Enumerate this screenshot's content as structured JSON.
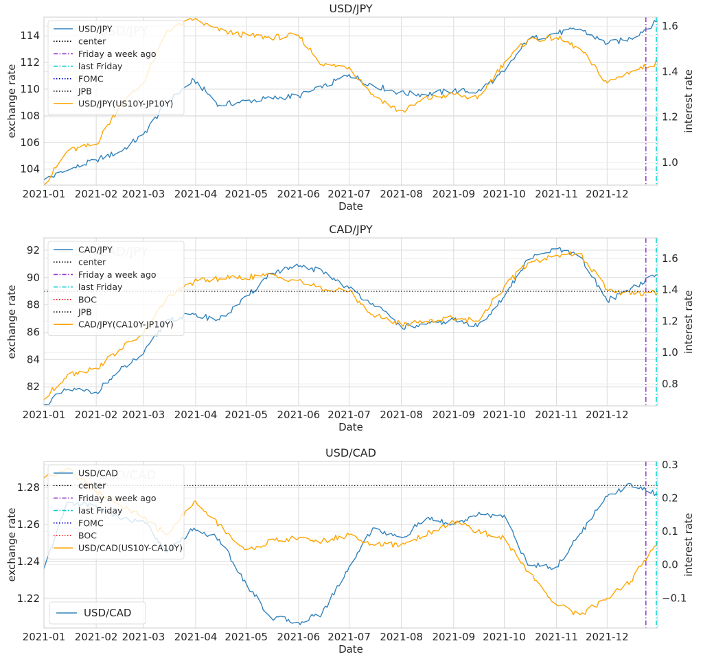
{
  "colors": {
    "primary": "#3182bd",
    "secondary": "#ffa500",
    "center": "#000000",
    "week_ago": "#9932cc",
    "last_friday": "#00ced1",
    "fomc": "#0000cd",
    "boc": "#ff0000",
    "jpb": "#000000"
  },
  "chart_data": [
    {
      "type": "line",
      "title": "USD/JPY",
      "xlabel": "Date",
      "ylabel": "exchange rate",
      "ylabel2": "interest rate",
      "x_ticks": [
        "2021-01",
        "2021-02",
        "2021-03",
        "2021-04",
        "2021-05",
        "2021-06",
        "2021-07",
        "2021-08",
        "2021-09",
        "2021-10",
        "2021-11",
        "2021-12"
      ],
      "x_range": [
        "2021-01-01",
        "2021-12-31"
      ],
      "ylim": [
        102.8,
        115.4
      ],
      "y_ticks": [
        "104",
        "106",
        "108",
        "110",
        "112",
        "114"
      ],
      "ylim2": [
        0.9,
        1.64
      ],
      "y2_ticks": [
        "1.0",
        "1.2",
        "1.4",
        "1.6"
      ],
      "grid": true,
      "legend_position": "top-left",
      "legend": [
        "USD/JPY",
        "center",
        "Friday a week ago",
        "last Friday",
        "FOMC",
        "JPB",
        "USD/JPY(US10Y-JP10Y)"
      ],
      "watermark": "USD/JPY",
      "vlines": {
        "friday_week_ago": "2021-12-24",
        "last_friday": "2021-12-31"
      },
      "series": [
        {
          "name": "USD/JPY",
          "axis": "left",
          "color_key": "primary",
          "x": [
            "2021-01-01",
            "2021-01-15",
            "2021-02-01",
            "2021-02-15",
            "2021-03-01",
            "2021-03-15",
            "2021-03-31",
            "2021-04-15",
            "2021-05-01",
            "2021-05-15",
            "2021-06-01",
            "2021-06-15",
            "2021-07-01",
            "2021-07-15",
            "2021-08-01",
            "2021-08-15",
            "2021-09-01",
            "2021-09-15",
            "2021-10-01",
            "2021-10-15",
            "2021-11-01",
            "2021-11-15",
            "2021-12-01",
            "2021-12-15",
            "2021-12-31"
          ],
          "y": [
            103.2,
            103.9,
            104.7,
            105.3,
            106.6,
            109.0,
            110.7,
            108.8,
            109.1,
            109.3,
            109.5,
            110.1,
            111.1,
            110.3,
            109.7,
            109.6,
            109.9,
            109.8,
            111.3,
            113.7,
            114.2,
            114.5,
            113.4,
            113.8,
            115.1
          ]
        },
        {
          "name": "USD/JPY(US10Y-JP10Y)",
          "axis": "right",
          "color_key": "secondary",
          "x": [
            "2021-01-01",
            "2021-01-15",
            "2021-02-01",
            "2021-02-15",
            "2021-03-01",
            "2021-03-15",
            "2021-03-31",
            "2021-04-15",
            "2021-05-01",
            "2021-05-15",
            "2021-06-01",
            "2021-06-15",
            "2021-07-01",
            "2021-07-15",
            "2021-08-01",
            "2021-08-15",
            "2021-09-01",
            "2021-09-15",
            "2021-10-01",
            "2021-10-15",
            "2021-11-01",
            "2021-11-15",
            "2021-12-01",
            "2021-12-15",
            "2021-12-31"
          ],
          "y": [
            0.9,
            1.05,
            1.08,
            1.25,
            1.35,
            1.58,
            1.63,
            1.58,
            1.56,
            1.55,
            1.56,
            1.43,
            1.42,
            1.3,
            1.22,
            1.28,
            1.3,
            1.28,
            1.44,
            1.54,
            1.55,
            1.5,
            1.35,
            1.4,
            1.44
          ]
        }
      ]
    },
    {
      "type": "line",
      "title": "CAD/JPY",
      "xlabel": "Date",
      "ylabel": "exchange rate",
      "ylabel2": "interest rate",
      "x_ticks": [
        "2021-01",
        "2021-02",
        "2021-03",
        "2021-04",
        "2021-05",
        "2021-06",
        "2021-07",
        "2021-08",
        "2021-09",
        "2021-10",
        "2021-11",
        "2021-12"
      ],
      "x_range": [
        "2021-01-01",
        "2021-12-31"
      ],
      "ylim": [
        80.6,
        92.9
      ],
      "y_ticks": [
        "82",
        "84",
        "86",
        "88",
        "90",
        "92"
      ],
      "ylim2": [
        0.66,
        1.73
      ],
      "y2_ticks": [
        "0.8",
        "1.0",
        "1.2",
        "1.4",
        "1.6"
      ],
      "grid": true,
      "legend_position": "top-left",
      "legend": [
        "CAD/JPY",
        "center",
        "Friday a week ago",
        "last Friday",
        "BOC",
        "JPB",
        "CAD/JPY(CA10Y-JP10Y)"
      ],
      "watermark": "CAD/JPY",
      "center_value": 89.0,
      "vlines": {
        "friday_week_ago": "2021-12-24",
        "last_friday": "2021-12-31"
      },
      "series": [
        {
          "name": "CAD/JPY",
          "axis": "left",
          "color_key": "primary",
          "x": [
            "2021-01-01",
            "2021-01-15",
            "2021-02-01",
            "2021-02-15",
            "2021-03-01",
            "2021-03-15",
            "2021-03-31",
            "2021-04-15",
            "2021-05-01",
            "2021-05-15",
            "2021-06-01",
            "2021-06-15",
            "2021-07-01",
            "2021-07-15",
            "2021-08-01",
            "2021-08-15",
            "2021-09-01",
            "2021-09-15",
            "2021-10-01",
            "2021-10-15",
            "2021-11-01",
            "2021-11-15",
            "2021-12-01",
            "2021-12-15",
            "2021-12-31"
          ],
          "y": [
            80.7,
            81.8,
            81.6,
            83.2,
            84.4,
            86.9,
            87.3,
            86.9,
            88.5,
            90.3,
            90.8,
            90.5,
            89.2,
            88.1,
            86.4,
            86.5,
            86.9,
            86.4,
            88.6,
            91.3,
            92.1,
            91.5,
            88.3,
            89.2,
            90.2
          ]
        },
        {
          "name": "CAD/JPY(CA10Y-JP10Y)",
          "axis": "right",
          "color_key": "secondary",
          "x": [
            "2021-01-01",
            "2021-01-15",
            "2021-02-01",
            "2021-02-15",
            "2021-03-01",
            "2021-03-15",
            "2021-03-31",
            "2021-04-15",
            "2021-05-01",
            "2021-05-15",
            "2021-06-01",
            "2021-06-15",
            "2021-07-01",
            "2021-07-15",
            "2021-08-01",
            "2021-08-15",
            "2021-09-01",
            "2021-09-15",
            "2021-10-01",
            "2021-10-15",
            "2021-11-01",
            "2021-11-15",
            "2021-12-01",
            "2021-12-15",
            "2021-12-31"
          ],
          "y": [
            0.7,
            0.86,
            0.9,
            1.02,
            1.12,
            1.35,
            1.45,
            1.47,
            1.48,
            1.49,
            1.46,
            1.4,
            1.39,
            1.24,
            1.18,
            1.2,
            1.22,
            1.2,
            1.42,
            1.57,
            1.62,
            1.63,
            1.4,
            1.37,
            1.38
          ]
        }
      ]
    },
    {
      "type": "line",
      "title": "USD/CAD",
      "xlabel": "Date",
      "ylabel": "exchange rate",
      "ylabel2": "interest rate",
      "x_ticks": [
        "2021-01",
        "2021-02",
        "2021-03",
        "2021-04",
        "2021-05",
        "2021-06",
        "2021-07",
        "2021-08",
        "2021-09",
        "2021-10",
        "2021-11",
        "2021-12"
      ],
      "x_range": [
        "2021-01-01",
        "2021-12-31"
      ],
      "ylim": [
        1.204,
        1.294
      ],
      "y_ticks": [
        "1.22",
        "1.24",
        "1.26",
        "1.28"
      ],
      "ylim2": [
        -0.19,
        0.31
      ],
      "y2_ticks": [
        "−0.1",
        "0.0",
        "0.1",
        "0.2",
        "0.3"
      ],
      "grid": true,
      "legend_position": "top-left",
      "legend": [
        "USD/CAD",
        "center",
        "Friday a week ago",
        "last Friday",
        "FOMC",
        "BOC",
        "USD/CAD(US10Y-CA10Y)"
      ],
      "legend2": [
        "USD/CAD"
      ],
      "legend2_position": "bottom-left",
      "watermark": "USD/CAD",
      "center_value": 1.281,
      "vlines": {
        "friday_week_ago": "2021-12-24",
        "last_friday": "2021-12-31"
      },
      "series": [
        {
          "name": "USD/CAD",
          "axis": "left",
          "color_key": "primary",
          "x": [
            "2021-01-01",
            "2021-01-15",
            "2021-02-01",
            "2021-02-15",
            "2021-03-01",
            "2021-03-15",
            "2021-03-31",
            "2021-04-15",
            "2021-05-01",
            "2021-05-15",
            "2021-06-01",
            "2021-06-15",
            "2021-07-01",
            "2021-07-15",
            "2021-08-01",
            "2021-08-15",
            "2021-09-01",
            "2021-09-15",
            "2021-10-01",
            "2021-10-15",
            "2021-11-01",
            "2021-11-15",
            "2021-12-01",
            "2021-12-15",
            "2021-12-31"
          ],
          "y": [
            1.236,
            1.272,
            1.27,
            1.263,
            1.262,
            1.245,
            1.258,
            1.252,
            1.228,
            1.21,
            1.207,
            1.212,
            1.237,
            1.258,
            1.252,
            1.263,
            1.26,
            1.265,
            1.265,
            1.238,
            1.237,
            1.255,
            1.275,
            1.282,
            1.276
          ]
        },
        {
          "name": "USD/CAD(US10Y-CA10Y)",
          "axis": "right",
          "color_key": "secondary",
          "x": [
            "2021-01-01",
            "2021-01-15",
            "2021-02-01",
            "2021-02-15",
            "2021-03-01",
            "2021-03-15",
            "2021-03-31",
            "2021-04-15",
            "2021-05-01",
            "2021-05-15",
            "2021-06-01",
            "2021-06-15",
            "2021-07-01",
            "2021-07-15",
            "2021-08-01",
            "2021-08-15",
            "2021-09-01",
            "2021-09-15",
            "2021-10-01",
            "2021-10-15",
            "2021-11-01",
            "2021-11-15",
            "2021-12-01",
            "2021-12-15",
            "2021-12-31"
          ],
          "y": [
            0.26,
            0.29,
            0.22,
            0.18,
            0.14,
            0.09,
            0.19,
            0.12,
            0.04,
            0.07,
            0.08,
            0.07,
            0.09,
            0.06,
            0.06,
            0.09,
            0.13,
            0.1,
            0.08,
            -0.02,
            -0.12,
            -0.15,
            -0.1,
            -0.05,
            0.07
          ]
        }
      ]
    }
  ]
}
